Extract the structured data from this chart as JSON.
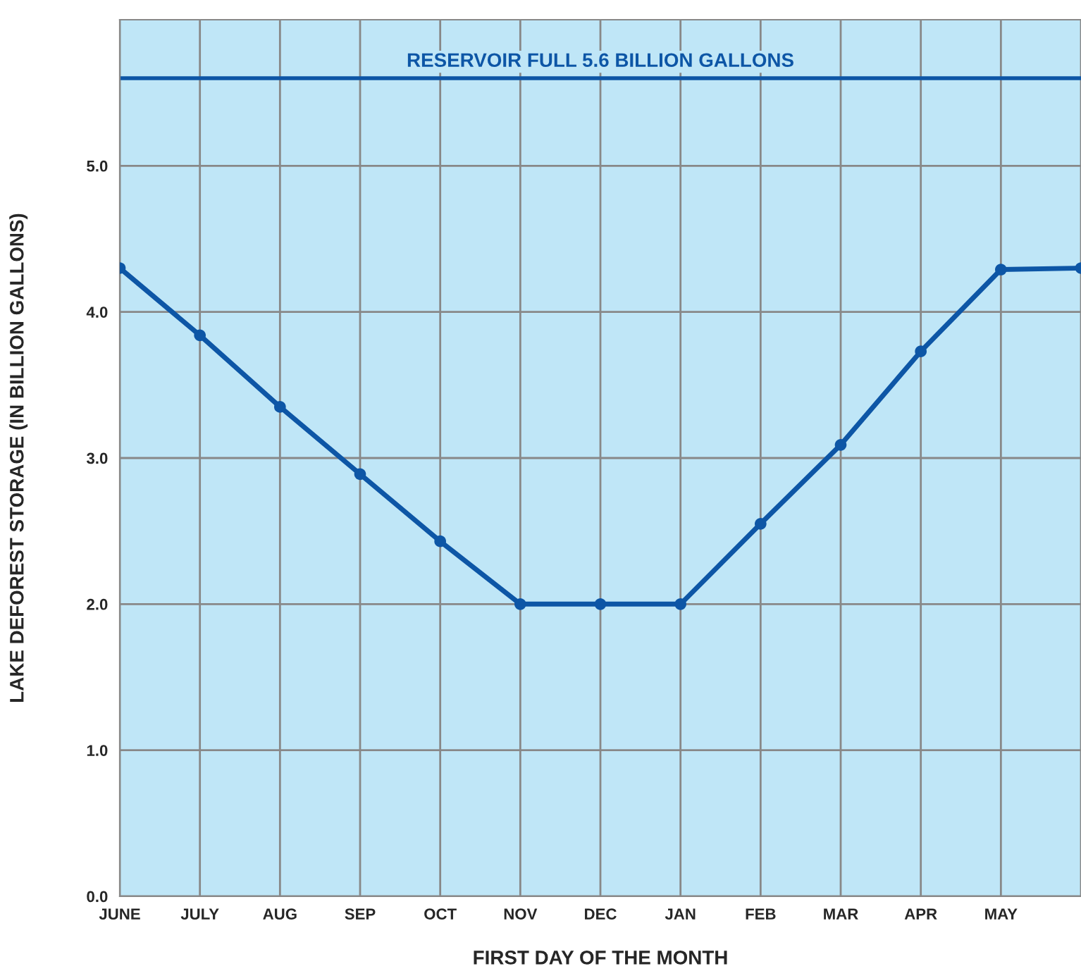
{
  "chart_data": {
    "type": "line",
    "xlabel": "FIRST DAY OF THE MONTH",
    "ylabel": "LAKE DEFOREST STORAGE (IN BILLION GALLONS)",
    "categories": [
      "JUNE",
      "JULY",
      "AUG",
      "SEP",
      "OCT",
      "NOV",
      "DEC",
      "JAN",
      "FEB",
      "MAR",
      "APR",
      "MAY",
      null
    ],
    "series": [
      {
        "color": "#0d56a6",
        "values": [
          4.3,
          3.84,
          3.35,
          2.89,
          2.43,
          2.0,
          2.0,
          2.0,
          2.55,
          3.09,
          3.73,
          4.29,
          4.3
        ]
      }
    ],
    "ylim": [
      0,
      6
    ],
    "yticks": [
      {
        "value": 0,
        "label": "0.0"
      },
      {
        "value": 1,
        "label": "1.0"
      },
      {
        "value": 2,
        "label": "2.0"
      },
      {
        "value": 3,
        "label": "3.0"
      },
      {
        "value": 4,
        "label": "4.0"
      },
      {
        "value": 5,
        "label": "5.0"
      }
    ],
    "ref_lines": [
      {
        "axis": "y",
        "value": 5.6,
        "label": "RESERVOIR FULL 5.6 BILLION GALLONS",
        "color": "#0d56a6"
      }
    ],
    "grid": true,
    "marker": "circle",
    "line_style": "solid",
    "legend": false
  }
}
